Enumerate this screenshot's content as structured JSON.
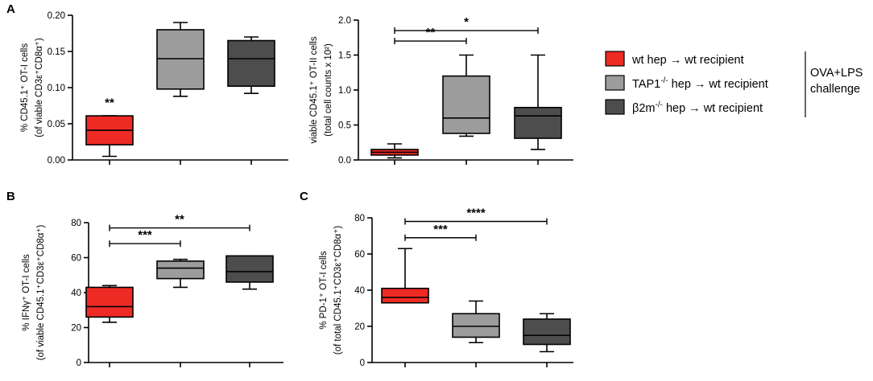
{
  "colors": {
    "wt": "#ee2a24",
    "tap1": "#9c9c9c",
    "b2m": "#4d4d4d",
    "median_line": "#000000"
  },
  "legend": {
    "items": [
      {
        "key": "wt",
        "label": "wt hep → wt recipient",
        "color": "#ee2a24"
      },
      {
        "key": "tap1",
        "label_pre": "TAP1",
        "label_sup": "-/-",
        "label_post": " hep → wt recipient",
        "color": "#9c9c9c"
      },
      {
        "key": "b2m",
        "label_pre": "β2m",
        "label_sup": "-/-",
        "label_post": " hep → wt recipient",
        "color": "#4d4d4d"
      }
    ],
    "challenge_line1": "OVA+LPS",
    "challenge_line2": "challenge"
  },
  "chart_data": [
    {
      "id": "A1",
      "type": "box",
      "panel_label": "A",
      "ylabel_line1": "% CD45.1⁺ OT-I cells",
      "ylabel_line2": "(of viable CD3ε⁺CD8α⁺)",
      "ylim": [
        0,
        0.2
      ],
      "yticks": [
        0.0,
        0.05,
        0.1,
        0.15,
        0.2
      ],
      "ytick_labels": [
        "0.00",
        "0.05",
        "0.10",
        "0.15",
        "0.20"
      ],
      "boxes": [
        {
          "group": "wt",
          "min": 0.005,
          "q1": 0.021,
          "median": 0.041,
          "q3": 0.061,
          "max": 0.061
        },
        {
          "group": "tap1",
          "min": 0.088,
          "q1": 0.098,
          "median": 0.14,
          "q3": 0.18,
          "max": 0.19
        },
        {
          "group": "b2m",
          "min": 0.092,
          "q1": 0.102,
          "median": 0.14,
          "q3": 0.165,
          "max": 0.17
        }
      ],
      "annotations": [
        {
          "text": "**",
          "group_index": 0,
          "value": 0.074
        }
      ],
      "brackets": []
    },
    {
      "id": "A2",
      "type": "box",
      "panel_label": "",
      "ylabel_line1": "viable CD45.1⁺ OT-II cells",
      "ylabel_line2": "(total cell counts x 10²)",
      "ylim": [
        0,
        2.0
      ],
      "yticks": [
        0.0,
        0.5,
        1.0,
        1.5,
        2.0
      ],
      "ytick_labels": [
        "0.0",
        "0.5",
        "1.0",
        "1.5",
        "2.0"
      ],
      "boxes": [
        {
          "group": "wt",
          "min": 0.03,
          "q1": 0.07,
          "median": 0.11,
          "q3": 0.15,
          "max": 0.23
        },
        {
          "group": "tap1",
          "min": 0.34,
          "q1": 0.38,
          "median": 0.6,
          "q3": 1.2,
          "max": 1.5
        },
        {
          "group": "b2m",
          "min": 0.15,
          "q1": 0.31,
          "median": 0.63,
          "q3": 0.75,
          "max": 1.5
        }
      ],
      "annotations": [],
      "brackets": [
        {
          "from": 0,
          "to": 1,
          "value": 1.7,
          "text": "**"
        },
        {
          "from": 0,
          "to": 2,
          "value": 1.85,
          "text": "*"
        }
      ]
    },
    {
      "id": "B",
      "type": "box",
      "panel_label": "B",
      "ylabel_line1": "% IFNγ⁺ OT-I cells",
      "ylabel_line2": "(of viable CD45.1⁺CD3ε⁺CD8α⁺)",
      "ylim": [
        0,
        80
      ],
      "yticks": [
        0,
        20,
        40,
        60,
        80
      ],
      "ytick_labels": [
        "0",
        "20",
        "40",
        "60",
        "80"
      ],
      "boxes": [
        {
          "group": "wt",
          "min": 23,
          "q1": 26,
          "median": 32,
          "q3": 43,
          "max": 44
        },
        {
          "group": "tap1",
          "min": 43,
          "q1": 48,
          "median": 54,
          "q3": 58,
          "max": 59
        },
        {
          "group": "b2m",
          "min": 42,
          "q1": 46,
          "median": 52,
          "q3": 61,
          "max": 61
        }
      ],
      "annotations": [],
      "brackets": [
        {
          "from": 0,
          "to": 1,
          "value": 68,
          "text": "***"
        },
        {
          "from": 0,
          "to": 2,
          "value": 77,
          "text": "**"
        }
      ]
    },
    {
      "id": "C",
      "type": "box",
      "panel_label": "C",
      "ylabel_line1": "% PD-1⁺ OT-I cells",
      "ylabel_line2": "(of total CD45.1⁺CD3ε⁺CD8α⁺)",
      "ylim": [
        0,
        80
      ],
      "yticks": [
        0,
        20,
        40,
        60,
        80
      ],
      "ytick_labels": [
        "0",
        "20",
        "40",
        "60",
        "80"
      ],
      "boxes": [
        {
          "group": "wt",
          "min": 33,
          "q1": 33,
          "median": 36,
          "q3": 41,
          "max": 63
        },
        {
          "group": "tap1",
          "min": 11,
          "q1": 14,
          "median": 20,
          "q3": 27,
          "max": 34
        },
        {
          "group": "b2m",
          "min": 6,
          "q1": 10,
          "median": 15,
          "q3": 24,
          "max": 27
        }
      ],
      "annotations": [],
      "brackets": [
        {
          "from": 0,
          "to": 1,
          "value": 69,
          "text": "***"
        },
        {
          "from": 0,
          "to": 2,
          "value": 78,
          "text": "****"
        }
      ]
    }
  ]
}
